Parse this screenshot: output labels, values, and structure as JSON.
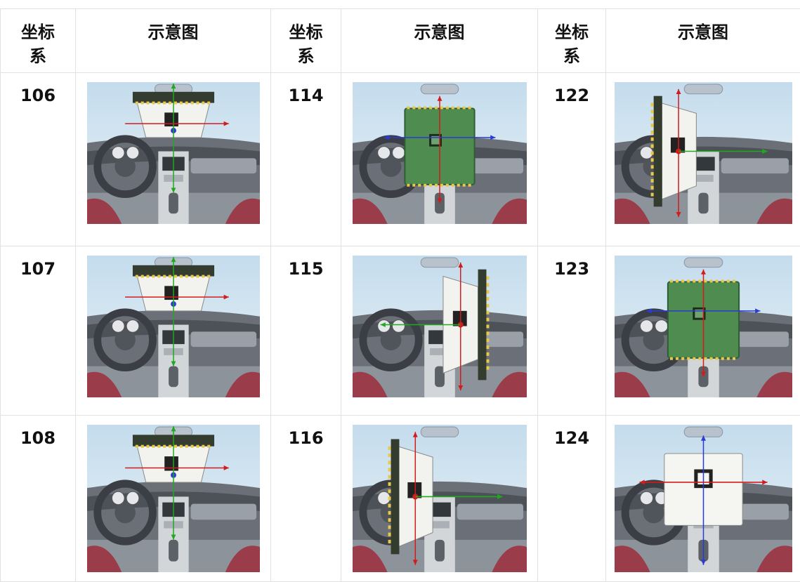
{
  "table": {
    "header": [
      "坐标系",
      "示意图",
      "坐标系",
      "示意图",
      "坐标系",
      "示意图"
    ],
    "rows": [
      [
        106,
        114,
        122
      ],
      [
        107,
        115,
        123
      ],
      [
        108,
        116,
        124
      ]
    ]
  }
}
